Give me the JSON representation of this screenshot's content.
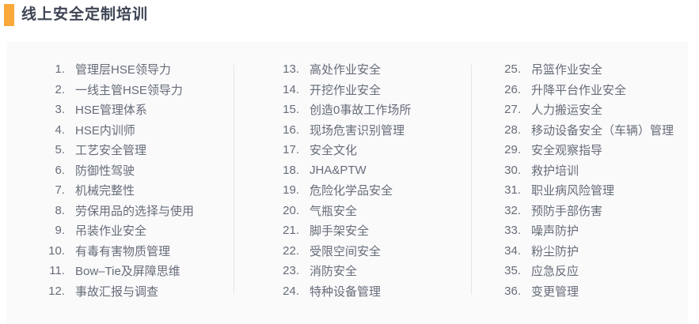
{
  "page": {
    "title": "线上安全定制培训",
    "accent_color": "#faa83c",
    "panel_bg_color": "#fafafb",
    "divider_color": "#e3e5e9"
  },
  "course_list": {
    "columns": [
      {
        "items": [
          {
            "num": "1.",
            "label": "管理层HSE领导力"
          },
          {
            "num": "2.",
            "label": "一线主管HSE领导力"
          },
          {
            "num": "3.",
            "label": "HSE管理体系"
          },
          {
            "num": "4.",
            "label": "HSE内训师"
          },
          {
            "num": "5.",
            "label": "工艺安全管理"
          },
          {
            "num": "6.",
            "label": "防御性驾驶"
          },
          {
            "num": "7.",
            "label": "机械完整性"
          },
          {
            "num": "8.",
            "label": "劳保用品的选择与使用"
          },
          {
            "num": "9.",
            "label": "吊装作业安全"
          },
          {
            "num": "10.",
            "label": "有毒有害物质管理"
          },
          {
            "num": "11.",
            "label": "Bow–Tie及屏障思维"
          },
          {
            "num": "12.",
            "label": "事故汇报与调查"
          }
        ]
      },
      {
        "items": [
          {
            "num": "13.",
            "label": "高处作业安全"
          },
          {
            "num": "14.",
            "label": "开挖作业安全"
          },
          {
            "num": "15.",
            "label": "创造0事故工作场所"
          },
          {
            "num": "16.",
            "label": "现场危害识别管理"
          },
          {
            "num": "17.",
            "label": "安全文化"
          },
          {
            "num": "18.",
            "label": "JHA&PTW"
          },
          {
            "num": "19.",
            "label": "危险化学品安全"
          },
          {
            "num": "20.",
            "label": "气瓶安全"
          },
          {
            "num": "21.",
            "label": "脚手架安全"
          },
          {
            "num": "22.",
            "label": "受限空间安全"
          },
          {
            "num": "23.",
            "label": "消防安全"
          },
          {
            "num": "24.",
            "label": "特种设备管理"
          }
        ]
      },
      {
        "items": [
          {
            "num": "25.",
            "label": "吊篮作业安全"
          },
          {
            "num": "26.",
            "label": "升降平台作业安全"
          },
          {
            "num": "27.",
            "label": "人力搬运安全"
          },
          {
            "num": "28.",
            "label": "移动设备安全（车辆）管理"
          },
          {
            "num": "29.",
            "label": "安全观察指导"
          },
          {
            "num": "30.",
            "label": "救护培训"
          },
          {
            "num": "31.",
            "label": "职业病风险管理"
          },
          {
            "num": "32.",
            "label": "预防手部伤害"
          },
          {
            "num": "33.",
            "label": "噪声防护"
          },
          {
            "num": "34.",
            "label": "粉尘防护"
          },
          {
            "num": "35.",
            "label": "应急反应"
          },
          {
            "num": "36.",
            "label": "变更管理"
          }
        ]
      }
    ]
  }
}
